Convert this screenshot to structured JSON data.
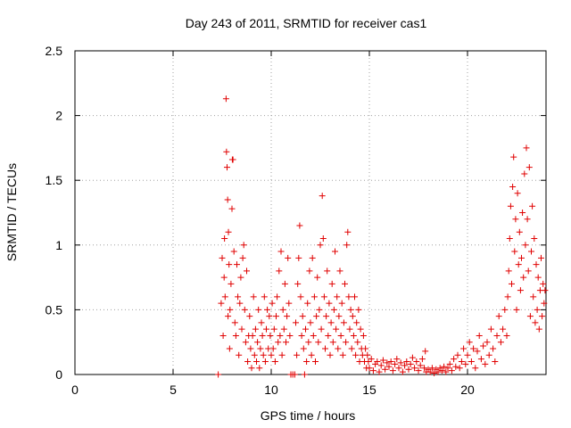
{
  "chart_data": {
    "type": "scatter",
    "title": "Day 243 of 2011, SRMTID for receiver cas1",
    "xlabel": "GPS time / hours",
    "ylabel": "SRMTID / TECUs",
    "xlim": [
      0,
      24
    ],
    "ylim": [
      0,
      2.5
    ],
    "xticks": [
      0,
      5,
      10,
      15,
      20
    ],
    "xtick_labels": [
      "0",
      "5",
      "10",
      "15",
      "20"
    ],
    "yticks": [
      0,
      0.5,
      1,
      1.5,
      2,
      2.5
    ],
    "ytick_labels": [
      "0",
      "0.5",
      "1",
      "1.5",
      "2",
      "2.5"
    ],
    "grid": true,
    "marker": "+",
    "color": "#e00000",
    "series": [
      {
        "name": "cas1",
        "points": [
          [
            7.3,
            0.0
          ],
          [
            7.45,
            0.55
          ],
          [
            7.5,
            0.9
          ],
          [
            7.55,
            0.3
          ],
          [
            7.6,
            0.75
          ],
          [
            7.62,
            1.05
          ],
          [
            7.65,
            0.6
          ],
          [
            7.7,
            2.13
          ],
          [
            7.72,
            1.72
          ],
          [
            7.75,
            1.6
          ],
          [
            7.78,
            1.35
          ],
          [
            7.8,
            0.45
          ],
          [
            7.82,
            1.1
          ],
          [
            7.85,
            0.85
          ],
          [
            7.88,
            0.2
          ],
          [
            7.9,
            0.5
          ],
          [
            7.95,
            0.7
          ],
          [
            8.0,
            1.28
          ],
          [
            8.02,
            1.66
          ],
          [
            8.05,
            1.66
          ],
          [
            8.1,
            0.95
          ],
          [
            8.15,
            0.4
          ],
          [
            8.2,
            0.3
          ],
          [
            8.25,
            0.85
          ],
          [
            8.3,
            0.6
          ],
          [
            8.35,
            0.15
          ],
          [
            8.4,
            0.55
          ],
          [
            8.45,
            0.75
          ],
          [
            8.5,
            0.35
          ],
          [
            8.55,
            0.9
          ],
          [
            8.6,
            1.0
          ],
          [
            8.65,
            0.5
          ],
          [
            8.7,
            0.25
          ],
          [
            8.75,
            0.8
          ],
          [
            8.8,
            0.1
          ],
          [
            8.85,
            0.3
          ],
          [
            8.9,
            0.45
          ],
          [
            8.95,
            0.2
          ],
          [
            9.0,
            0.05
          ],
          [
            9.05,
            0.3
          ],
          [
            9.1,
            0.6
          ],
          [
            9.15,
            0.15
          ],
          [
            9.2,
            0.35
          ],
          [
            9.25,
            0.1
          ],
          [
            9.3,
            0.25
          ],
          [
            9.35,
            0.5
          ],
          [
            9.4,
            0.05
          ],
          [
            9.45,
            0.2
          ],
          [
            9.5,
            0.4
          ],
          [
            9.55,
            0.3
          ],
          [
            9.6,
            0.15
          ],
          [
            9.65,
            0.6
          ],
          [
            9.7,
            0.1
          ],
          [
            9.75,
            0.35
          ],
          [
            9.8,
            0.5
          ],
          [
            9.85,
            0.2
          ],
          [
            9.9,
            0.45
          ],
          [
            9.95,
            0.3
          ],
          [
            10.0,
            0.15
          ],
          [
            10.05,
            0.55
          ],
          [
            10.1,
            0.2
          ],
          [
            10.15,
            0.35
          ],
          [
            10.2,
            0.1
          ],
          [
            10.25,
            0.45
          ],
          [
            10.3,
            0.6
          ],
          [
            10.35,
            0.25
          ],
          [
            10.4,
            0.8
          ],
          [
            10.45,
            0.3
          ],
          [
            10.5,
            0.95
          ],
          [
            10.55,
            0.15
          ],
          [
            10.6,
            0.5
          ],
          [
            10.65,
            0.35
          ],
          [
            10.7,
            0.7
          ],
          [
            10.75,
            0.25
          ],
          [
            10.8,
            0.45
          ],
          [
            10.85,
            0.9
          ],
          [
            10.9,
            0.55
          ],
          [
            10.95,
            0.3
          ],
          [
            11.0,
            0.0
          ],
          [
            11.1,
            0.0
          ],
          [
            11.2,
            0.0
          ],
          [
            11.25,
            0.4
          ],
          [
            11.3,
            0.15
          ],
          [
            11.35,
            0.7
          ],
          [
            11.4,
            0.9
          ],
          [
            11.45,
            1.15
          ],
          [
            11.5,
            0.6
          ],
          [
            11.55,
            0.3
          ],
          [
            11.6,
            0.45
          ],
          [
            11.65,
            0.2
          ],
          [
            11.7,
            0.0
          ],
          [
            11.75,
            0.35
          ],
          [
            11.8,
            0.1
          ],
          [
            11.85,
            0.55
          ],
          [
            11.9,
            0.25
          ],
          [
            11.95,
            0.8
          ],
          [
            12.0,
            0.4
          ],
          [
            12.05,
            0.15
          ],
          [
            12.1,
            0.9
          ],
          [
            12.15,
            0.3
          ],
          [
            12.2,
            0.6
          ],
          [
            12.25,
            0.1
          ],
          [
            12.3,
            0.45
          ],
          [
            12.35,
            0.75
          ],
          [
            12.4,
            0.25
          ],
          [
            12.45,
            0.5
          ],
          [
            12.5,
            1.0
          ],
          [
            12.55,
            0.35
          ],
          [
            12.6,
            1.38
          ],
          [
            12.65,
            1.05
          ],
          [
            12.7,
            0.6
          ],
          [
            12.75,
            0.2
          ],
          [
            12.8,
            0.45
          ],
          [
            12.85,
            0.8
          ],
          [
            12.9,
            0.3
          ],
          [
            12.95,
            0.55
          ],
          [
            13.0,
            0.15
          ],
          [
            13.05,
            0.4
          ],
          [
            13.1,
            0.7
          ],
          [
            13.15,
            0.25
          ],
          [
            13.2,
            0.5
          ],
          [
            13.25,
            0.95
          ],
          [
            13.3,
            0.35
          ],
          [
            13.35,
            0.6
          ],
          [
            13.4,
            0.2
          ],
          [
            13.45,
            0.45
          ],
          [
            13.5,
            0.8
          ],
          [
            13.55,
            0.3
          ],
          [
            13.6,
            0.55
          ],
          [
            13.65,
            0.15
          ],
          [
            13.7,
            0.4
          ],
          [
            13.75,
            0.7
          ],
          [
            13.8,
            0.25
          ],
          [
            13.85,
            1.0
          ],
          [
            13.9,
            1.1
          ],
          [
            13.95,
            0.6
          ],
          [
            14.0,
            0.35
          ],
          [
            14.05,
            0.5
          ],
          [
            14.1,
            0.2
          ],
          [
            14.15,
            0.45
          ],
          [
            14.2,
            0.3
          ],
          [
            14.25,
            0.6
          ],
          [
            14.3,
            0.15
          ],
          [
            14.35,
            0.4
          ],
          [
            14.4,
            0.25
          ],
          [
            14.45,
            0.5
          ],
          [
            14.5,
            0.1
          ],
          [
            14.55,
            0.35
          ],
          [
            14.6,
            0.2
          ],
          [
            14.65,
            0.15
          ],
          [
            14.7,
            0.3
          ],
          [
            14.75,
            0.1
          ],
          [
            14.8,
            0.2
          ],
          [
            14.85,
            0.05
          ],
          [
            14.9,
            0.15
          ],
          [
            14.95,
            0.1
          ],
          [
            15.0,
            0.05
          ],
          [
            15.1,
            0.12
          ],
          [
            15.2,
            0.03
          ],
          [
            15.3,
            0.08
          ],
          [
            15.4,
            0.1
          ],
          [
            15.5,
            0.02
          ],
          [
            15.6,
            0.07
          ],
          [
            15.7,
            0.11
          ],
          [
            15.8,
            0.04
          ],
          [
            15.9,
            0.09
          ],
          [
            16.0,
            0.06
          ],
          [
            16.1,
            0.1
          ],
          [
            16.2,
            0.03
          ],
          [
            16.3,
            0.08
          ],
          [
            16.4,
            0.12
          ],
          [
            16.5,
            0.05
          ],
          [
            16.6,
            0.09
          ],
          [
            16.7,
            0.02
          ],
          [
            16.8,
            0.07
          ],
          [
            16.9,
            0.1
          ],
          [
            17.0,
            0.04
          ],
          [
            17.1,
            0.08
          ],
          [
            17.2,
            0.13
          ],
          [
            17.3,
            0.05
          ],
          [
            17.4,
            0.1
          ],
          [
            17.5,
            0.03
          ],
          [
            17.6,
            0.07
          ],
          [
            17.7,
            0.12
          ],
          [
            17.8,
            0.05
          ],
          [
            17.85,
            0.18
          ],
          [
            17.9,
            0.02
          ],
          [
            18.0,
            0.04
          ],
          [
            18.1,
            0.02
          ],
          [
            18.2,
            0.05
          ],
          [
            18.3,
            0.01
          ],
          [
            18.4,
            0.04
          ],
          [
            18.5,
            0.02
          ],
          [
            18.6,
            0.05
          ],
          [
            18.7,
            0.03
          ],
          [
            18.8,
            0.06
          ],
          [
            18.9,
            0.02
          ],
          [
            19.0,
            0.05
          ],
          [
            19.1,
            0.08
          ],
          [
            19.2,
            0.03
          ],
          [
            19.3,
            0.12
          ],
          [
            19.4,
            0.06
          ],
          [
            19.5,
            0.15
          ],
          [
            19.6,
            0.05
          ],
          [
            19.7,
            0.1
          ],
          [
            19.8,
            0.2
          ],
          [
            19.9,
            0.08
          ],
          [
            20.0,
            0.15
          ],
          [
            20.1,
            0.25
          ],
          [
            20.2,
            0.1
          ],
          [
            20.3,
            0.2
          ],
          [
            20.4,
            0.05
          ],
          [
            20.5,
            0.18
          ],
          [
            20.6,
            0.3
          ],
          [
            20.7,
            0.12
          ],
          [
            20.8,
            0.22
          ],
          [
            20.9,
            0.08
          ],
          [
            21.0,
            0.25
          ],
          [
            21.1,
            0.15
          ],
          [
            21.2,
            0.35
          ],
          [
            21.3,
            0.2
          ],
          [
            21.4,
            0.1
          ],
          [
            21.5,
            0.3
          ],
          [
            21.6,
            0.45
          ],
          [
            21.7,
            0.25
          ],
          [
            21.8,
            0.35
          ],
          [
            21.9,
            0.5
          ],
          [
            22.0,
            0.3
          ],
          [
            22.05,
            0.6
          ],
          [
            22.1,
            0.8
          ],
          [
            22.15,
            1.05
          ],
          [
            22.2,
            1.3
          ],
          [
            22.25,
            0.7
          ],
          [
            22.3,
            1.45
          ],
          [
            22.35,
            1.68
          ],
          [
            22.4,
            0.95
          ],
          [
            22.45,
            1.2
          ],
          [
            22.5,
            0.5
          ],
          [
            22.55,
            1.4
          ],
          [
            22.6,
            0.85
          ],
          [
            22.65,
            1.1
          ],
          [
            22.7,
            0.65
          ],
          [
            22.75,
            0.9
          ],
          [
            22.8,
            1.25
          ],
          [
            22.85,
            0.75
          ],
          [
            22.9,
            1.55
          ],
          [
            22.95,
            1.0
          ],
          [
            23.0,
            1.75
          ],
          [
            23.05,
            1.2
          ],
          [
            23.1,
            0.8
          ],
          [
            23.15,
            1.6
          ],
          [
            23.2,
            0.45
          ],
          [
            23.25,
            0.95
          ],
          [
            23.3,
            1.3
          ],
          [
            23.35,
            0.6
          ],
          [
            23.4,
            1.05
          ],
          [
            23.45,
            0.4
          ],
          [
            23.5,
            0.85
          ],
          [
            23.55,
            0.5
          ],
          [
            23.6,
            0.75
          ],
          [
            23.65,
            0.35
          ],
          [
            23.7,
            0.65
          ],
          [
            23.75,
            0.9
          ],
          [
            23.8,
            0.45
          ],
          [
            23.85,
            0.7
          ],
          [
            23.9,
            0.55
          ],
          [
            23.95,
            0.65
          ]
        ]
      }
    ]
  }
}
